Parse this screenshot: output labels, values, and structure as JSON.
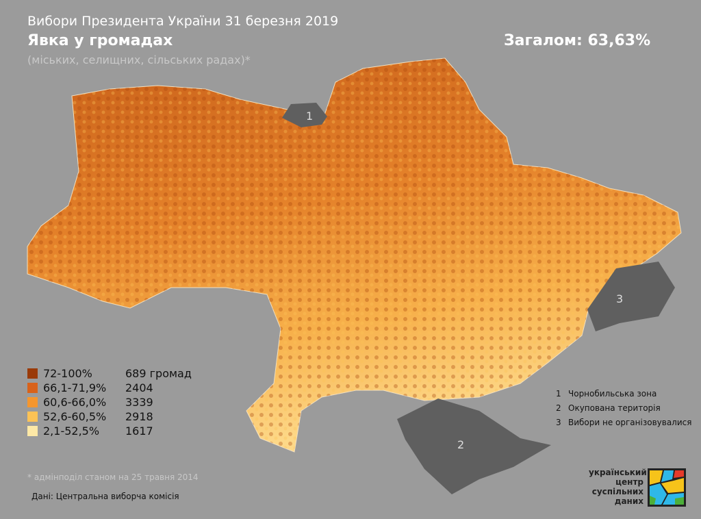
{
  "header": {
    "supertitle": "Вибори Президента України 31 березня 2019",
    "title": "Явка у громадах",
    "subtitle": "(міських, селищних, сільських радах)*",
    "total": "Загалом: 63,63%"
  },
  "legend": [
    {
      "range": "72-100%",
      "count": "689 громад",
      "color": "#9a3a08"
    },
    {
      "range": "66,1-71,9%",
      "count": "2404",
      "color": "#d9621a"
    },
    {
      "range": "60,6-66,0%",
      "count": "3339",
      "color": "#f5962e"
    },
    {
      "range": "52,6-60,5%",
      "count": "2918",
      "color": "#fcc255"
    },
    {
      "range": "2,1-52,5%",
      "count": "1617",
      "color": "#fde8a6"
    }
  ],
  "zones": [
    {
      "num": "1",
      "label": "Чорнобильська зона"
    },
    {
      "num": "2",
      "label": "Окупована територія"
    },
    {
      "num": "3",
      "label": "Вибори не організовувалися"
    }
  ],
  "footnote": "* адмінподіл станом на 25 травня 2014",
  "source": "Дані: Центральна виборча комісія",
  "logo": {
    "line1": "український",
    "line2": "центр",
    "line3": "суспільних",
    "line4": "даних"
  },
  "colors": {
    "background": "#9b9b9b",
    "excluded": "#5f5f5f"
  }
}
